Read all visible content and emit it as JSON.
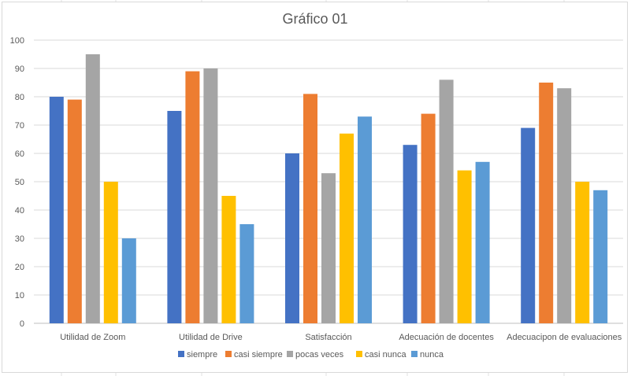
{
  "chart_data": {
    "type": "bar",
    "title": "Gráfico 01",
    "xlabel": "",
    "ylabel": "",
    "ylim": [
      0,
      100
    ],
    "yticks": [
      0,
      10,
      20,
      30,
      40,
      50,
      60,
      70,
      80,
      90,
      100
    ],
    "grid": true,
    "legend_position": "bottom",
    "categories": [
      "Utilidad de Zoom",
      "Utilidad de Drive",
      "Satisfacción",
      "Adecuación de docentes",
      "Adecuacipon de evaluaciones"
    ],
    "series": [
      {
        "name": "siempre",
        "color": "#4472c4",
        "values": [
          80,
          75,
          60,
          63,
          69
        ]
      },
      {
        "name": "casi siempre",
        "color": "#ed7d31",
        "values": [
          79,
          89,
          81,
          74,
          85
        ]
      },
      {
        "name": "pocas veces",
        "color": "#a5a5a5",
        "values": [
          95,
          90,
          53,
          86,
          83
        ]
      },
      {
        "name": "casi nunca",
        "color": "#ffc000",
        "values": [
          50,
          45,
          67,
          54,
          50
        ]
      },
      {
        "name": "nunca",
        "color": "#5b9bd5",
        "values": [
          30,
          35,
          73,
          57,
          47
        ]
      }
    ]
  }
}
